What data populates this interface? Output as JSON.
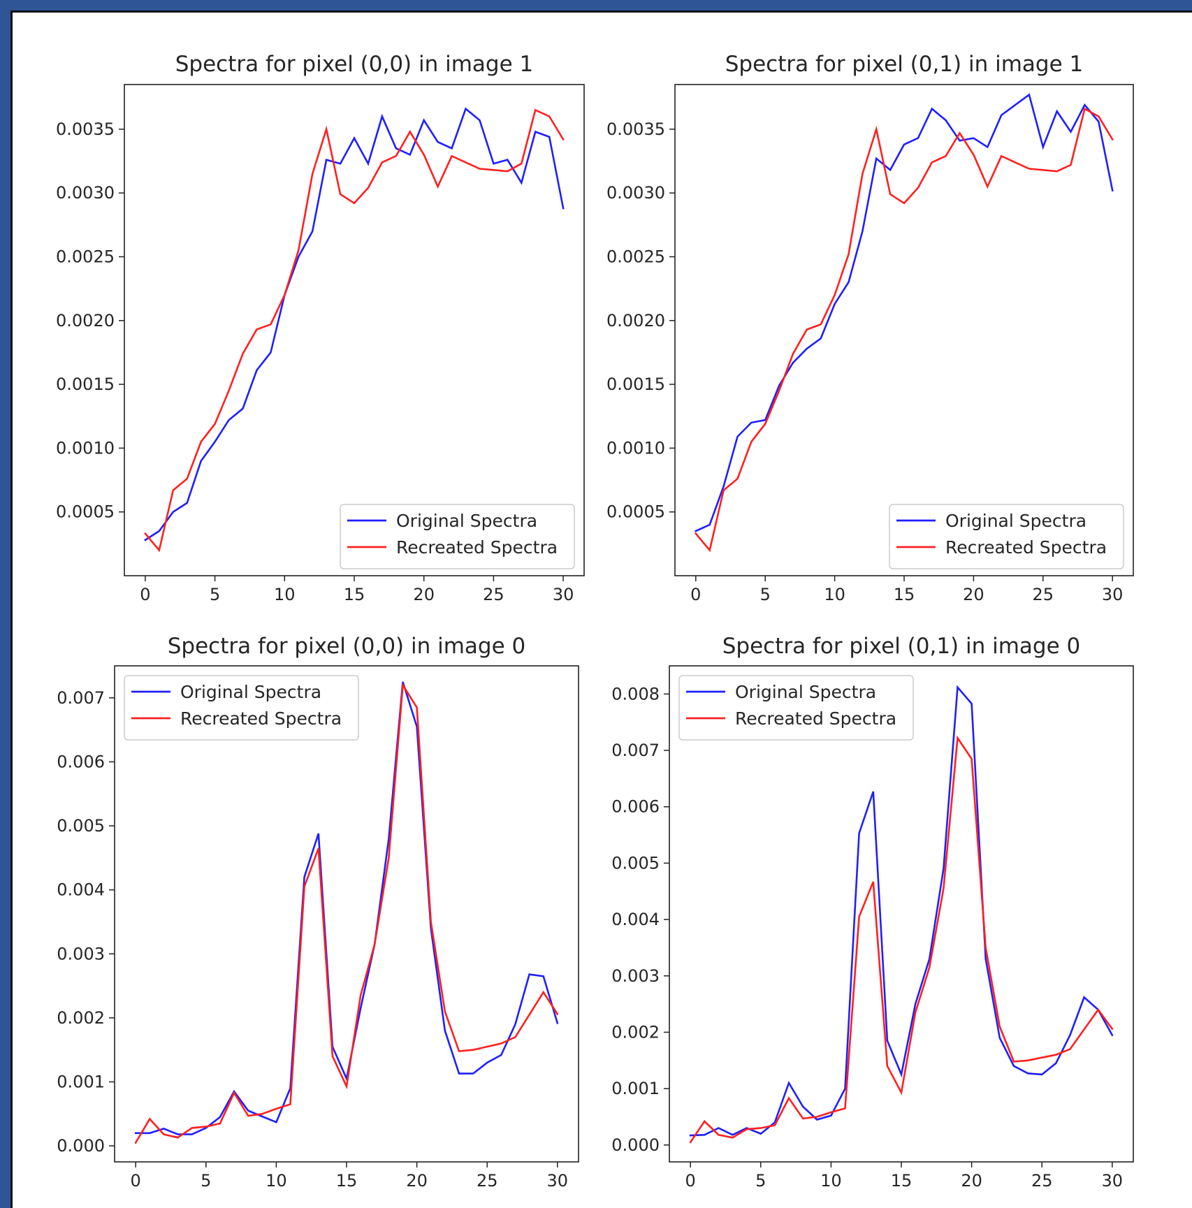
{
  "colors": {
    "original": "#1f1fff",
    "recreated": "#ff2020",
    "frame": "#2f5597",
    "background": "#ffffff"
  },
  "chart_data": [
    {
      "type": "line",
      "title": "Spectra for pixel (0,0) in image 1",
      "xlabel": "",
      "ylabel": "",
      "xlim": [
        -1.5,
        31.5
      ],
      "ylim": [
        0.0,
        0.00385
      ],
      "xticks": [
        0,
        5,
        10,
        15,
        20,
        25,
        30
      ],
      "yticks": [
        0.0005,
        0.001,
        0.0015,
        0.002,
        0.0025,
        0.003,
        0.0035
      ],
      "ytick_labels": [
        "0.0005",
        "0.0010",
        "0.0015",
        "0.0020",
        "0.0025",
        "0.0030",
        "0.0035"
      ],
      "grid": false,
      "legend_position": "lower-right",
      "x": [
        0,
        1,
        2,
        3,
        4,
        5,
        6,
        7,
        8,
        9,
        10,
        11,
        12,
        13,
        14,
        15,
        16,
        17,
        18,
        19,
        20,
        21,
        22,
        23,
        24,
        25,
        26,
        27,
        28,
        29,
        30
      ],
      "series": [
        {
          "name": "Original Spectra",
          "color": "#1f1fff",
          "values": [
            0.00028,
            0.00035,
            0.0005,
            0.00057,
            0.0009,
            0.00105,
            0.00122,
            0.00131,
            0.00161,
            0.00175,
            0.0022,
            0.0025,
            0.0027,
            0.00326,
            0.00323,
            0.00343,
            0.00323,
            0.0036,
            0.00335,
            0.0033,
            0.00357,
            0.0034,
            0.00335,
            0.00366,
            0.00357,
            0.00323,
            0.00326,
            0.00308,
            0.00348,
            0.00344,
            0.00288
          ]
        },
        {
          "name": "Recreated Spectra",
          "color": "#ff2020",
          "values": [
            0.00033,
            0.0002,
            0.00067,
            0.00076,
            0.00105,
            0.00119,
            0.00145,
            0.00174,
            0.00193,
            0.00197,
            0.0022,
            0.00255,
            0.00315,
            0.0035,
            0.00299,
            0.00292,
            0.00304,
            0.00324,
            0.00329,
            0.00348,
            0.0033,
            0.00305,
            0.00329,
            0.00324,
            0.00319,
            0.00318,
            0.00317,
            0.00323,
            0.00365,
            0.0036,
            0.00342
          ]
        }
      ]
    },
    {
      "type": "line",
      "title": "Spectra for pixel (0,1) in image 1",
      "xlabel": "",
      "ylabel": "",
      "xlim": [
        -1.5,
        31.5
      ],
      "ylim": [
        0.0,
        0.00385
      ],
      "xticks": [
        0,
        5,
        10,
        15,
        20,
        25,
        30
      ],
      "yticks": [
        0.0005,
        0.001,
        0.0015,
        0.002,
        0.0025,
        0.003,
        0.0035
      ],
      "ytick_labels": [
        "0.0005",
        "0.0010",
        "0.0015",
        "0.0020",
        "0.0025",
        "0.0030",
        "0.0035"
      ],
      "grid": false,
      "legend_position": "lower-right",
      "x": [
        0,
        1,
        2,
        3,
        4,
        5,
        6,
        7,
        8,
        9,
        10,
        11,
        12,
        13,
        14,
        15,
        16,
        17,
        18,
        19,
        20,
        21,
        22,
        23,
        24,
        25,
        26,
        27,
        28,
        29,
        30
      ],
      "series": [
        {
          "name": "Original Spectra",
          "color": "#1f1fff",
          "values": [
            0.00035,
            0.0004,
            0.0007,
            0.00109,
            0.0012,
            0.00122,
            0.00149,
            0.00167,
            0.00178,
            0.00186,
            0.00213,
            0.0023,
            0.0027,
            0.00327,
            0.00318,
            0.00338,
            0.00343,
            0.00366,
            0.00357,
            0.00341,
            0.00343,
            0.00336,
            0.00361,
            0.00369,
            0.00377,
            0.00336,
            0.00364,
            0.00348,
            0.00369,
            0.00356,
            0.00302
          ]
        },
        {
          "name": "Recreated Spectra",
          "color": "#ff2020",
          "values": [
            0.00033,
            0.0002,
            0.00067,
            0.00076,
            0.00105,
            0.00119,
            0.00145,
            0.00174,
            0.00193,
            0.00197,
            0.0022,
            0.00252,
            0.00315,
            0.0035,
            0.00299,
            0.00292,
            0.00304,
            0.00324,
            0.00329,
            0.00347,
            0.0033,
            0.00305,
            0.00329,
            0.00324,
            0.00319,
            0.00318,
            0.00317,
            0.00322,
            0.00366,
            0.0036,
            0.00342
          ]
        }
      ]
    },
    {
      "type": "line",
      "title": "Spectra for pixel (0,0) in image 0",
      "xlabel": "",
      "ylabel": "",
      "xlim": [
        -1.5,
        31.5
      ],
      "ylim": [
        -0.00025,
        0.0075
      ],
      "xticks": [
        0,
        5,
        10,
        15,
        20,
        25,
        30
      ],
      "yticks": [
        0.0,
        0.001,
        0.002,
        0.003,
        0.004,
        0.005,
        0.006,
        0.007
      ],
      "ytick_labels": [
        "0.000",
        "0.001",
        "0.002",
        "0.003",
        "0.004",
        "0.005",
        "0.006",
        "0.007"
      ],
      "grid": false,
      "legend_position": "upper-left",
      "x": [
        0,
        1,
        2,
        3,
        4,
        5,
        6,
        7,
        8,
        9,
        10,
        11,
        12,
        13,
        14,
        15,
        16,
        17,
        18,
        19,
        20,
        21,
        22,
        23,
        24,
        25,
        26,
        27,
        28,
        29,
        30
      ],
      "series": [
        {
          "name": "Original Spectra",
          "color": "#1f1fff",
          "values": [
            0.0002,
            0.0002,
            0.00027,
            0.00018,
            0.00018,
            0.00028,
            0.00045,
            0.00085,
            0.00055,
            0.00046,
            0.00037,
            0.0009,
            0.0042,
            0.00488,
            0.00155,
            0.00105,
            0.00215,
            0.00315,
            0.0048,
            0.00725,
            0.00655,
            0.0034,
            0.0018,
            0.00113,
            0.00113,
            0.0013,
            0.00142,
            0.0019,
            0.00268,
            0.00265,
            0.00192
          ]
        },
        {
          "name": "Recreated Spectra",
          "color": "#ff2020",
          "values": [
            5e-05,
            0.00042,
            0.00018,
            0.00013,
            0.00028,
            0.0003,
            0.00035,
            0.00083,
            0.00047,
            0.0005,
            0.00058,
            0.00065,
            0.00405,
            0.00465,
            0.0014,
            0.00093,
            0.00235,
            0.00315,
            0.0045,
            0.0072,
            0.00685,
            0.0035,
            0.0021,
            0.00148,
            0.0015,
            0.00155,
            0.0016,
            0.0017,
            0.00205,
            0.0024,
            0.00206
          ]
        }
      ]
    },
    {
      "type": "line",
      "title": "Spectra for pixel (0,1) in image 0",
      "xlabel": "",
      "ylabel": "",
      "xlim": [
        -1.5,
        31.5
      ],
      "ylim": [
        -0.0003,
        0.0085
      ],
      "xticks": [
        0,
        5,
        10,
        15,
        20,
        25,
        30
      ],
      "yticks": [
        0.0,
        0.001,
        0.002,
        0.003,
        0.004,
        0.005,
        0.006,
        0.007,
        0.008
      ],
      "ytick_labels": [
        "0.000",
        "0.001",
        "0.002",
        "0.003",
        "0.004",
        "0.005",
        "0.006",
        "0.007",
        "0.008"
      ],
      "grid": false,
      "legend_position": "upper-left",
      "x": [
        0,
        1,
        2,
        3,
        4,
        5,
        6,
        7,
        8,
        9,
        10,
        11,
        12,
        13,
        14,
        15,
        16,
        17,
        18,
        19,
        20,
        21,
        22,
        23,
        24,
        25,
        26,
        27,
        28,
        29,
        30
      ],
      "series": [
        {
          "name": "Original Spectra",
          "color": "#1f1fff",
          "values": [
            0.00017,
            0.00018,
            0.0003,
            0.00018,
            0.0003,
            0.0002,
            0.0004,
            0.0011,
            0.00068,
            0.00045,
            0.00052,
            0.001,
            0.00553,
            0.00627,
            0.00185,
            0.00125,
            0.0025,
            0.0033,
            0.0049,
            0.00812,
            0.00783,
            0.0033,
            0.0019,
            0.0014,
            0.00127,
            0.00125,
            0.00145,
            0.00195,
            0.00262,
            0.0024,
            0.00195
          ]
        },
        {
          "name": "Recreated Spectra",
          "color": "#ff2020",
          "values": [
            5e-05,
            0.00042,
            0.00018,
            0.00013,
            0.00028,
            0.0003,
            0.00035,
            0.00083,
            0.00047,
            0.0005,
            0.00058,
            0.00065,
            0.00405,
            0.00467,
            0.0014,
            0.00093,
            0.00235,
            0.00315,
            0.00455,
            0.00722,
            0.00685,
            0.0035,
            0.0021,
            0.00148,
            0.0015,
            0.00155,
            0.0016,
            0.0017,
            0.00205,
            0.0024,
            0.00206
          ]
        }
      ]
    }
  ]
}
